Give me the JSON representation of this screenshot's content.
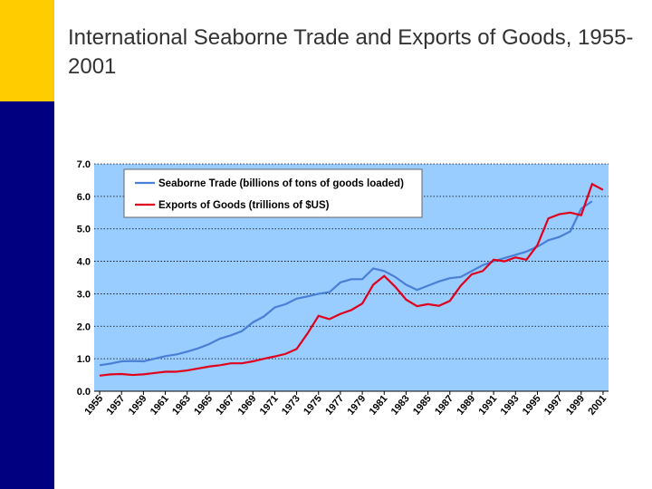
{
  "chart_data": {
    "type": "line",
    "title": "International Seaborne Trade and Exports of Goods, 1955-2001",
    "x": [
      1955,
      1956,
      1957,
      1958,
      1959,
      1960,
      1961,
      1962,
      1963,
      1964,
      1965,
      1966,
      1967,
      1968,
      1969,
      1970,
      1971,
      1972,
      1973,
      1974,
      1975,
      1976,
      1977,
      1978,
      1979,
      1980,
      1981,
      1982,
      1983,
      1984,
      1985,
      1986,
      1987,
      1988,
      1989,
      1990,
      1991,
      1992,
      1993,
      1994,
      1995,
      1996,
      1997,
      1998,
      1999,
      2000,
      2001
    ],
    "series": [
      {
        "name": "Seaborne Trade (billions of tons of goods loaded)",
        "color": "#4a7fd6",
        "values": [
          0.8,
          0.85,
          0.92,
          0.93,
          0.92,
          1.0,
          1.08,
          1.13,
          1.22,
          1.32,
          1.45,
          1.62,
          1.72,
          1.85,
          2.12,
          2.3,
          2.58,
          2.68,
          2.85,
          2.92,
          3.0,
          3.05,
          3.35,
          3.45,
          3.45,
          3.78,
          3.7,
          3.52,
          3.28,
          3.12,
          3.25,
          3.38,
          3.48,
          3.52,
          3.7,
          3.88,
          4.0,
          4.1,
          4.2,
          4.3,
          4.45,
          4.65,
          4.75,
          4.92,
          5.62,
          5.85,
          null
        ]
      },
      {
        "name": "Exports of Goods (trillions of $US)",
        "color": "#e0001b",
        "values": [
          0.48,
          0.52,
          0.53,
          0.5,
          0.52,
          0.56,
          0.6,
          0.6,
          0.64,
          0.7,
          0.76,
          0.8,
          0.86,
          0.86,
          0.92,
          1.0,
          1.07,
          1.15,
          1.3,
          1.78,
          2.32,
          2.22,
          2.38,
          2.5,
          2.7,
          3.28,
          3.55,
          3.22,
          2.82,
          2.62,
          2.68,
          2.63,
          2.78,
          3.25,
          3.6,
          3.7,
          4.05,
          4.0,
          4.12,
          4.05,
          4.5,
          5.32,
          5.45,
          5.5,
          5.42,
          6.38,
          6.2
        ]
      }
    ],
    "xlim": [
      1954.5,
      2001.5
    ],
    "xticks": [
      1955,
      1957,
      1959,
      1961,
      1963,
      1965,
      1967,
      1969,
      1971,
      1973,
      1975,
      1977,
      1979,
      1981,
      1983,
      1985,
      1987,
      1989,
      1991,
      1993,
      1995,
      1997,
      1999,
      2001
    ],
    "ylim": [
      0,
      7
    ],
    "yticks": [
      {
        "value": 0,
        "label": "0.0"
      },
      {
        "value": 1,
        "label": "1.0"
      },
      {
        "value": 2,
        "label": "2.0"
      },
      {
        "value": 3,
        "label": "3.0"
      },
      {
        "value": 4,
        "label": "4.0"
      },
      {
        "value": 5,
        "label": "5.0"
      },
      {
        "value": 6,
        "label": "6.0"
      },
      {
        "value": 7,
        "label": "7.0"
      }
    ],
    "grid": true,
    "legend": "top-left",
    "plot_color": "#99ccff"
  }
}
